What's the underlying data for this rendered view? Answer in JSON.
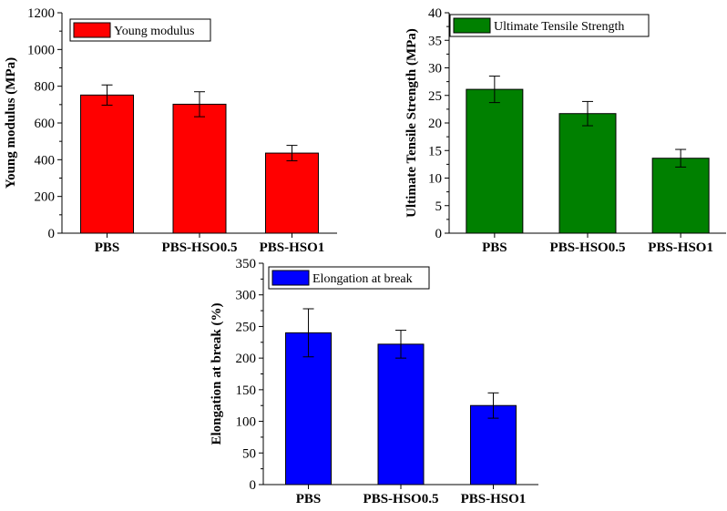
{
  "chart_data": [
    {
      "type": "bar",
      "categories": [
        "PBS",
        "PBS-HSO0.5",
        "PBS-HSO1"
      ],
      "series": [
        {
          "name": "Young modulus",
          "values": [
            752,
            702,
            436
          ],
          "errors": [
            55,
            68,
            42
          ]
        }
      ],
      "xlabel": "",
      "ylabel": "Young modulus (MPa)",
      "ylim": [
        0,
        1200
      ],
      "yticks": [
        0,
        200,
        400,
        600,
        800,
        1000,
        1200
      ],
      "color": "#ff0000",
      "legend": "top-left",
      "grid": false
    },
    {
      "type": "bar",
      "categories": [
        "PBS",
        "PBS-HSO0.5",
        "PBS-HSO1"
      ],
      "series": [
        {
          "name": "Ultimate Tensile Strength",
          "values": [
            26.1,
            21.7,
            13.6
          ],
          "errors": [
            2.4,
            2.2,
            1.6
          ]
        }
      ],
      "xlabel": "",
      "ylabel": "Ultimate Tensile Strength (MPa)",
      "ylim": [
        0,
        40
      ],
      "yticks": [
        0,
        5,
        10,
        15,
        20,
        25,
        30,
        35,
        40
      ],
      "color": "#008000",
      "legend": "top-left",
      "grid": false
    },
    {
      "type": "bar",
      "categories": [
        "PBS",
        "PBS-HSO0.5",
        "PBS-HSO1"
      ],
      "series": [
        {
          "name": "Elongation at break",
          "values": [
            240,
            222,
            125
          ],
          "errors": [
            38,
            22,
            20
          ]
        }
      ],
      "xlabel": "",
      "ylabel": "Elongation at break (%)",
      "ylim": [
        0,
        350
      ],
      "yticks": [
        0,
        50,
        100,
        150,
        200,
        250,
        300,
        350
      ],
      "color": "#0000ff",
      "legend": "top-left",
      "grid": false
    }
  ]
}
